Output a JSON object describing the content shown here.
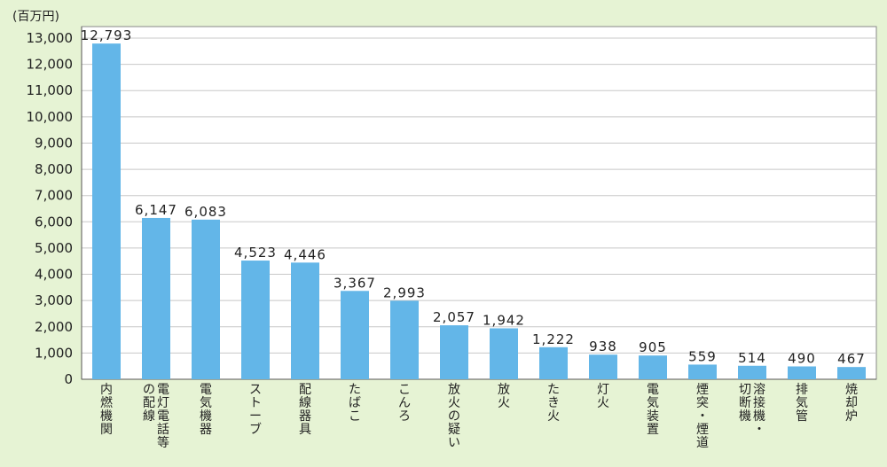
{
  "chart_data": {
    "type": "bar",
    "unit_label": "(百万円)",
    "categories": [
      [
        "内燃機関"
      ],
      [
        "電灯電話等",
        "の配線"
      ],
      [
        "電気機器"
      ],
      [
        "ストーブ"
      ],
      [
        "配線器具"
      ],
      [
        "たばこ"
      ],
      [
        "こんろ"
      ],
      [
        "放火の疑い"
      ],
      [
        "放火"
      ],
      [
        "たき火"
      ],
      [
        "灯火"
      ],
      [
        "電気装置"
      ],
      [
        "煙突・煙道"
      ],
      [
        "溶接機・",
        "切断機"
      ],
      [
        "排気管"
      ],
      [
        "焼却炉"
      ]
    ],
    "values": [
      12793,
      6147,
      6083,
      4523,
      4446,
      3367,
      2993,
      2057,
      1942,
      1222,
      938,
      905,
      559,
      514,
      490,
      467
    ],
    "value_labels": [
      "12,793",
      "6,147",
      "6,083",
      "4,523",
      "4,446",
      "3,367",
      "2,993",
      "2,057",
      "1,942",
      "1,222",
      "938",
      "905",
      "559",
      "514",
      "490",
      "467"
    ],
    "ylim": [
      0,
      13000
    ],
    "yticks": [
      0,
      1000,
      2000,
      3000,
      4000,
      5000,
      6000,
      7000,
      8000,
      9000,
      10000,
      11000,
      12000,
      13000
    ],
    "ytick_labels": [
      "0",
      "1,000",
      "2,000",
      "3,000",
      "4,000",
      "5,000",
      "6,000",
      "7,000",
      "8,000",
      "9,000",
      "10,000",
      "11,000",
      "12,000",
      "13,000"
    ],
    "grid": true,
    "colors": {
      "bar": "#63b6e8",
      "plot_bg": "#ffffff",
      "grid": "#c8c8c8",
      "frame_bg": "#e6f3d4"
    }
  }
}
